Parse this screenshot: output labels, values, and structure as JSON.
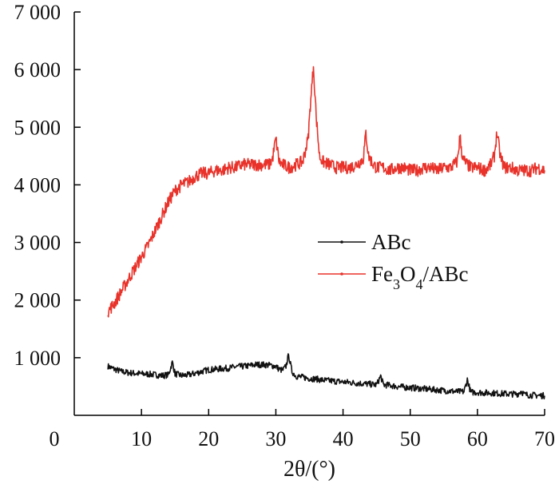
{
  "chart_data": {
    "type": "line",
    "title": "",
    "xlabel": "2θ/(°)",
    "ylabel": "",
    "xlim": [
      0,
      70
    ],
    "ylim": [
      0,
      7000
    ],
    "x_ticks": [
      0,
      10,
      20,
      30,
      40,
      50,
      60,
      70
    ],
    "x_tick_labels": [
      "0",
      "10",
      "20",
      "30",
      "40",
      "50",
      "60",
      "70"
    ],
    "y_ticks": [
      1000,
      2000,
      3000,
      4000,
      5000,
      6000,
      7000
    ],
    "y_tick_labels": [
      "1 000",
      "2 000",
      "3 000",
      "4 000",
      "5 000",
      "6 000",
      "7 000"
    ],
    "grid": false,
    "legend_position": "center-right",
    "colors": {
      "ABc": "#111111",
      "Fe3O4/ABc": "#e8322a"
    },
    "series": [
      {
        "name": "ABc",
        "legend_label": "ABc",
        "x": [
          5,
          6,
          7,
          8,
          9,
          10,
          11,
          12,
          13,
          14,
          14.6,
          15,
          16,
          17,
          18,
          19,
          20,
          21,
          22,
          23,
          24,
          25,
          26,
          27,
          28,
          29,
          30,
          30.5,
          31,
          31.5,
          31.9,
          32.4,
          33,
          34,
          35,
          36,
          37,
          38,
          39,
          40,
          41,
          42,
          43,
          44,
          45,
          45.6,
          46,
          47,
          48,
          49,
          50,
          51,
          52,
          53,
          54,
          55,
          56,
          57,
          58,
          58.5,
          59,
          60,
          61,
          62,
          63,
          64,
          65,
          66,
          66.5,
          67,
          68,
          69,
          70
        ],
        "y": [
          850,
          800,
          760,
          740,
          730,
          720,
          715,
          705,
          690,
          700,
          920,
          720,
          690,
          700,
          730,
          760,
          790,
          800,
          810,
          820,
          840,
          850,
          860,
          880,
          880,
          870,
          850,
          800,
          780,
          850,
          1050,
          760,
          680,
          660,
          640,
          630,
          610,
          600,
          590,
          580,
          570,
          560,
          550,
          540,
          530,
          680,
          530,
          520,
          500,
          490,
          480,
          470,
          460,
          450,
          440,
          430,
          420,
          410,
          410,
          620,
          400,
          400,
          390,
          390,
          380,
          375,
          370,
          370,
          420,
          360,
          350,
          345,
          340
        ]
      },
      {
        "name": "Fe3O4/ABc",
        "legend_label": "Fe3O4/ABc",
        "x": [
          5,
          6,
          7,
          8,
          9,
          10,
          11,
          12,
          13,
          14,
          15,
          16,
          17,
          18,
          19,
          20,
          21,
          22,
          23,
          24,
          25,
          26,
          27,
          28,
          29,
          29.5,
          30,
          30.5,
          31,
          32,
          33,
          34,
          34.8,
          35.2,
          35.6,
          36,
          36.5,
          37,
          38,
          39,
          40,
          41,
          42,
          43,
          43.4,
          43.8,
          44.5,
          45,
          46,
          47,
          48,
          49,
          50,
          51,
          52,
          53,
          54,
          55,
          56,
          57,
          57.4,
          57.8,
          58.5,
          59,
          60,
          61,
          62,
          62.5,
          62.9,
          63.4,
          64,
          65,
          66,
          67,
          68,
          69,
          70
        ],
        "y": [
          1800,
          1950,
          2150,
          2350,
          2550,
          2750,
          2950,
          3200,
          3450,
          3700,
          3900,
          4000,
          4050,
          4150,
          4200,
          4200,
          4250,
          4250,
          4300,
          4300,
          4350,
          4350,
          4350,
          4350,
          4350,
          4450,
          4800,
          4400,
          4350,
          4300,
          4350,
          4400,
          4800,
          5500,
          6050,
          5200,
          4500,
          4400,
          4350,
          4300,
          4300,
          4300,
          4350,
          4450,
          4900,
          4500,
          4350,
          4300,
          4300,
          4250,
          4300,
          4300,
          4250,
          4250,
          4300,
          4300,
          4250,
          4300,
          4300,
          4400,
          4850,
          4450,
          4350,
          4300,
          4300,
          4250,
          4350,
          4500,
          4900,
          4500,
          4300,
          4300,
          4250,
          4250,
          4250,
          4300,
          4250
        ]
      }
    ]
  }
}
